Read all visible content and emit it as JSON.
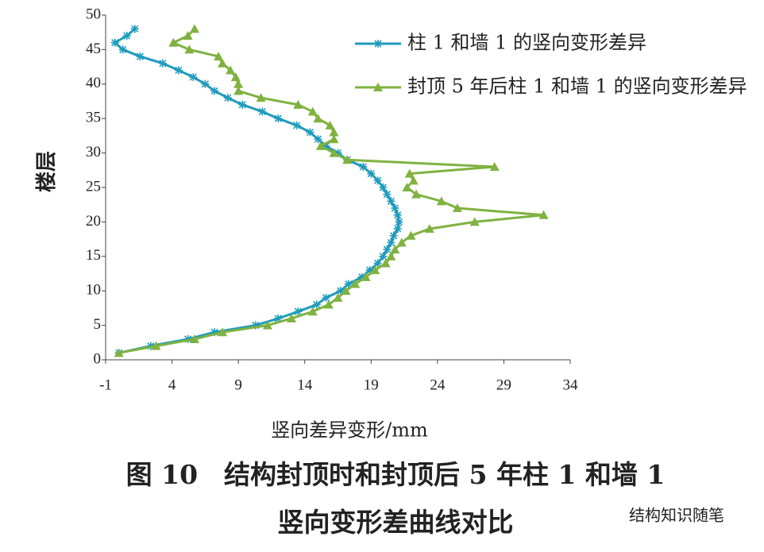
{
  "chart_data": {
    "type": "line",
    "title": "图 10　结构封顶时和封顶后 5 年柱 1 和墙 1",
    "subtitle": "竖向变形差曲线对比",
    "watermark": "结构知识随笔",
    "x_label": "竖向差异变形/mm",
    "y_label": "楼层",
    "xlim": [
      -1,
      34
    ],
    "xticks": [
      -1,
      4,
      9,
      14,
      19,
      24,
      29,
      34
    ],
    "ylim": [
      0,
      50
    ],
    "yticks": [
      0,
      5,
      10,
      15,
      20,
      25,
      30,
      35,
      40,
      45,
      50
    ],
    "y": [
      1,
      2,
      3,
      4,
      5,
      6,
      7,
      8,
      9,
      10,
      11,
      12,
      13,
      14,
      15,
      16,
      17,
      18,
      19,
      20,
      21,
      22,
      23,
      24,
      25,
      26,
      27,
      28,
      29,
      30,
      31,
      32,
      33,
      34,
      35,
      36,
      37,
      38,
      39,
      40,
      41,
      42,
      43,
      44,
      45,
      46,
      47,
      48
    ],
    "series": [
      {
        "name": "柱 1 和墙 1 的竖向变形差异",
        "color": "#1f9bbd",
        "marker": "star",
        "values": [
          0.0,
          2.4,
          5.2,
          7.2,
          10.3,
          12.0,
          13.5,
          14.9,
          15.6,
          16.7,
          17.3,
          18.3,
          18.9,
          19.5,
          19.9,
          20.2,
          20.5,
          20.7,
          21.0,
          21.1,
          21.0,
          20.8,
          20.5,
          20.2,
          19.9,
          19.5,
          19.0,
          18.4,
          17.2,
          16.5,
          15.6,
          15.0,
          14.4,
          13.4,
          12.0,
          10.8,
          9.3,
          8.2,
          7.2,
          6.5,
          5.6,
          4.5,
          3.3,
          1.6,
          0.3,
          -0.3,
          0.6,
          1.2
        ]
      },
      {
        "name": "封顶 5 年后柱 1 和墙 1 的竖向变形差异",
        "color": "#7fb240",
        "marker": "triangle",
        "values": [
          0.0,
          2.8,
          5.7,
          7.8,
          11.2,
          13.0,
          14.6,
          15.8,
          16.5,
          17.1,
          17.8,
          18.6,
          19.3,
          20.1,
          20.5,
          20.8,
          21.3,
          22.0,
          23.4,
          26.8,
          32.0,
          25.5,
          24.3,
          22.4,
          21.7,
          22.2,
          21.9,
          28.3,
          17.2,
          16.2,
          15.2,
          16.2,
          16.2,
          15.9,
          15.0,
          14.6,
          13.5,
          10.7,
          9.0,
          9.0,
          8.8,
          8.4,
          7.8,
          7.5,
          5.3,
          4.1,
          5.2,
          5.7
        ]
      }
    ]
  }
}
